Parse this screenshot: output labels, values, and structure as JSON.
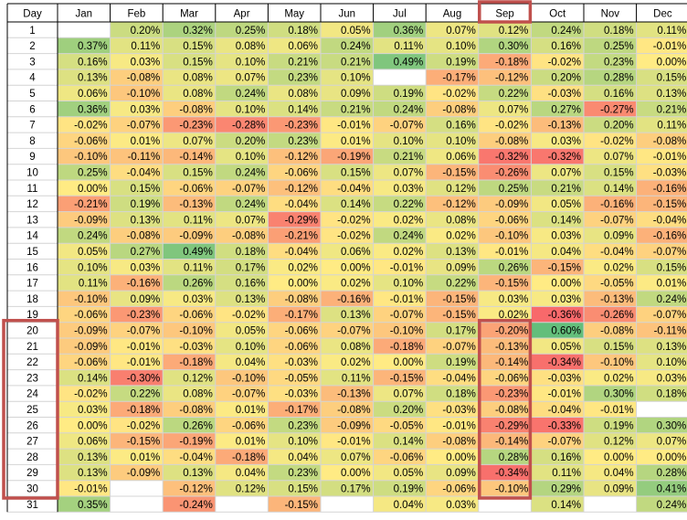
{
  "chart_data": {
    "type": "heatmap",
    "corner_label": "Day",
    "columns": [
      "Jan",
      "Feb",
      "Mar",
      "Apr",
      "May",
      "Jun",
      "Jul",
      "Aug",
      "Sep",
      "Oct",
      "Nov",
      "Dec"
    ],
    "rows": [
      "1",
      "2",
      "3",
      "4",
      "5",
      "6",
      "7",
      "8",
      "9",
      "10",
      "11",
      "12",
      "13",
      "14",
      "15",
      "16",
      "17",
      "18",
      "19",
      "20",
      "21",
      "22",
      "23",
      "24",
      "25",
      "26",
      "27",
      "28",
      "29",
      "30",
      "31"
    ],
    "values": [
      [
        null,
        0.2,
        0.32,
        0.25,
        0.18,
        0.05,
        0.36,
        0.07,
        0.12,
        0.24,
        0.18,
        0.11
      ],
      [
        0.37,
        0.11,
        0.15,
        0.08,
        0.06,
        0.24,
        0.11,
        0.1,
        0.3,
        0.16,
        0.25,
        -0.01
      ],
      [
        0.16,
        0.03,
        0.15,
        0.1,
        0.21,
        0.21,
        0.49,
        0.19,
        -0.18,
        -0.02,
        0.23,
        0.0
      ],
      [
        0.13,
        -0.08,
        0.08,
        0.07,
        0.23,
        0.1,
        null,
        -0.17,
        -0.12,
        0.2,
        0.28,
        0.15
      ],
      [
        0.06,
        -0.1,
        0.08,
        0.24,
        0.08,
        0.09,
        0.19,
        -0.02,
        0.22,
        -0.03,
        0.16,
        0.13
      ],
      [
        0.36,
        0.03,
        -0.08,
        0.1,
        0.14,
        0.21,
        0.24,
        -0.08,
        0.07,
        0.27,
        -0.27,
        0.21
      ],
      [
        -0.02,
        -0.07,
        -0.23,
        -0.28,
        -0.23,
        -0.01,
        -0.07,
        0.16,
        -0.02,
        -0.13,
        0.2,
        0.11
      ],
      [
        -0.06,
        0.01,
        0.07,
        0.2,
        0.23,
        0.01,
        0.1,
        0.1,
        -0.08,
        0.03,
        -0.02,
        -0.08
      ],
      [
        -0.1,
        -0.11,
        -0.14,
        0.1,
        -0.12,
        -0.19,
        0.21,
        0.06,
        -0.32,
        -0.32,
        0.07,
        -0.01
      ],
      [
        0.25,
        -0.04,
        0.15,
        0.24,
        -0.06,
        0.15,
        0.07,
        -0.15,
        -0.26,
        0.07,
        0.15,
        -0.03
      ],
      [
        0.0,
        0.15,
        -0.06,
        -0.07,
        -0.12,
        -0.04,
        0.03,
        0.12,
        0.25,
        0.21,
        0.14,
        -0.16
      ],
      [
        -0.21,
        0.19,
        -0.13,
        0.24,
        -0.04,
        0.14,
        0.22,
        -0.12,
        -0.09,
        0.05,
        -0.16,
        -0.15
      ],
      [
        -0.09,
        0.13,
        0.11,
        0.07,
        -0.29,
        -0.02,
        0.02,
        0.08,
        -0.06,
        0.14,
        -0.07,
        -0.04
      ],
      [
        0.24,
        -0.08,
        -0.09,
        -0.08,
        -0.21,
        -0.02,
        0.24,
        0.02,
        -0.1,
        0.03,
        0.09,
        -0.16
      ],
      [
        0.05,
        0.27,
        0.49,
        0.18,
        -0.04,
        0.06,
        0.02,
        0.13,
        -0.01,
        0.04,
        -0.04,
        -0.07
      ],
      [
        0.1,
        0.03,
        0.11,
        0.17,
        0.02,
        0.0,
        -0.01,
        0.09,
        0.26,
        -0.15,
        0.02,
        0.15
      ],
      [
        0.11,
        -0.16,
        0.26,
        0.16,
        0.0,
        0.02,
        0.1,
        0.22,
        -0.15,
        0.0,
        -0.05,
        0.01
      ],
      [
        -0.1,
        0.09,
        0.03,
        0.13,
        -0.08,
        -0.16,
        -0.01,
        -0.15,
        0.03,
        0.03,
        -0.13,
        0.24
      ],
      [
        -0.06,
        -0.23,
        -0.06,
        -0.02,
        -0.17,
        0.13,
        -0.07,
        -0.15,
        0.02,
        -0.36,
        -0.26,
        -0.07
      ],
      [
        -0.09,
        -0.07,
        -0.1,
        0.05,
        -0.06,
        -0.07,
        -0.1,
        0.17,
        -0.2,
        0.6,
        -0.08,
        -0.11
      ],
      [
        -0.09,
        -0.01,
        -0.03,
        0.1,
        -0.06,
        0.08,
        -0.18,
        -0.07,
        -0.13,
        0.05,
        0.15,
        0.13
      ],
      [
        -0.06,
        -0.01,
        -0.18,
        0.04,
        -0.03,
        0.02,
        0.0,
        0.19,
        -0.14,
        -0.34,
        -0.1,
        0.1
      ],
      [
        0.14,
        -0.3,
        0.12,
        -0.1,
        -0.05,
        0.11,
        -0.15,
        -0.04,
        -0.06,
        -0.03,
        0.02,
        0.03
      ],
      [
        -0.02,
        0.22,
        0.08,
        -0.07,
        -0.03,
        -0.13,
        0.07,
        0.18,
        -0.23,
        -0.01,
        0.3,
        0.18
      ],
      [
        0.03,
        -0.18,
        -0.08,
        0.01,
        -0.17,
        -0.08,
        0.2,
        -0.03,
        -0.08,
        -0.04,
        -0.01,
        null
      ],
      [
        0.0,
        -0.02,
        0.26,
        -0.06,
        0.23,
        -0.09,
        -0.05,
        -0.01,
        -0.29,
        -0.33,
        0.19,
        0.3
      ],
      [
        0.06,
        -0.15,
        -0.19,
        0.01,
        0.1,
        -0.01,
        0.14,
        -0.08,
        -0.14,
        -0.07,
        0.12,
        0.07
      ],
      [
        0.13,
        0.01,
        -0.04,
        -0.18,
        0.04,
        0.07,
        -0.06,
        0.0,
        0.28,
        0.16,
        0.0,
        0.0
      ],
      [
        0.13,
        -0.09,
        0.13,
        0.04,
        0.23,
        0.0,
        0.05,
        0.09,
        -0.34,
        0.11,
        0.04,
        0.28
      ],
      [
        -0.01,
        null,
        -0.12,
        0.12,
        0.15,
        0.17,
        0.19,
        -0.06,
        -0.1,
        0.29,
        0.09,
        0.41
      ],
      [
        0.35,
        null,
        -0.24,
        null,
        -0.15,
        null,
        0.04,
        0.03,
        null,
        0.14,
        null,
        0.24
      ]
    ],
    "value_format": "percent_2dp",
    "highlights": [
      {
        "kind": "header",
        "column": "Sep"
      },
      {
        "kind": "row-labels",
        "from_day": "20",
        "to_day": "30"
      },
      {
        "kind": "cells",
        "column": "Sep",
        "from_day": "20",
        "to_day": "30"
      }
    ],
    "colors": {
      "negative": "#f8696b",
      "neutral": "#ffeb84",
      "positive": "#63be7b",
      "highlight_border": "#c0504d",
      "grid_line": "#d4d4d4",
      "header_border": "#000000"
    }
  }
}
